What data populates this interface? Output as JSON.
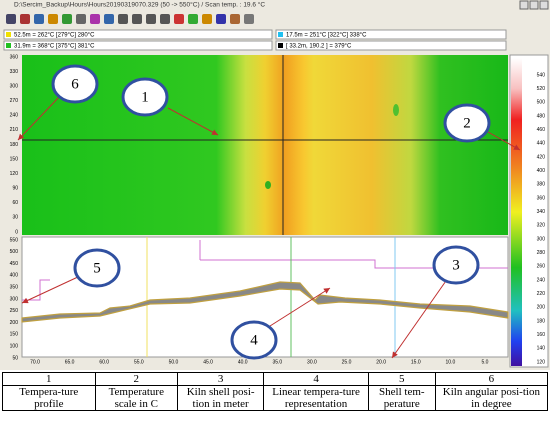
{
  "window": {
    "title": "D:\\Sercim_Backup\\Hours\\Hours20190319070.329 (50 -> 550°C) / Scan temp. : 19.6 °C"
  },
  "info": {
    "boxes": [
      "52.5m = 262°C [279°C] 280°C",
      "17.5m = 251°C [322°C] 338°C",
      "31.9m = 368°C [375°C] 381°C",
      "[ 33.2m, 190.2 ] = 379°C"
    ]
  },
  "image_axis": {
    "ticks": [
      "360",
      "330",
      "300",
      "270",
      "240",
      "210",
      "180",
      "150",
      "120",
      "90",
      "60",
      "30",
      "0"
    ]
  },
  "scale": {
    "ticks": [
      "540",
      "520",
      "500",
      "480",
      "460",
      "440",
      "420",
      "400",
      "380",
      "360",
      "340",
      "320",
      "300",
      "280",
      "260",
      "240",
      "220",
      "200",
      "180",
      "160",
      "140",
      "120"
    ]
  },
  "profile": {
    "yticks": [
      "550",
      "500",
      "450",
      "400",
      "350",
      "300",
      "250",
      "200",
      "150",
      "100",
      "50"
    ],
    "xticks": [
      "70.0",
      "65.0",
      "60.0",
      "55.0",
      "50.0",
      "45.0",
      "40.0",
      "35.0",
      "30.0",
      "25.0",
      "20.0",
      "15.0",
      "10.0",
      "5.0"
    ]
  },
  "callouts": [
    "1",
    "2",
    "3",
    "4",
    "5",
    "6"
  ],
  "table": {
    "headers": [
      "1",
      "2",
      "3",
      "4",
      "5",
      "6"
    ],
    "cells": [
      "Tempera-ture profile",
      "Temperature scale in C",
      "Kiln shell posi-tion in meter",
      "Linear tempera-ture representation",
      "Shell tem-perature",
      "Kiln angular posi-tion in degree"
    ]
  }
}
